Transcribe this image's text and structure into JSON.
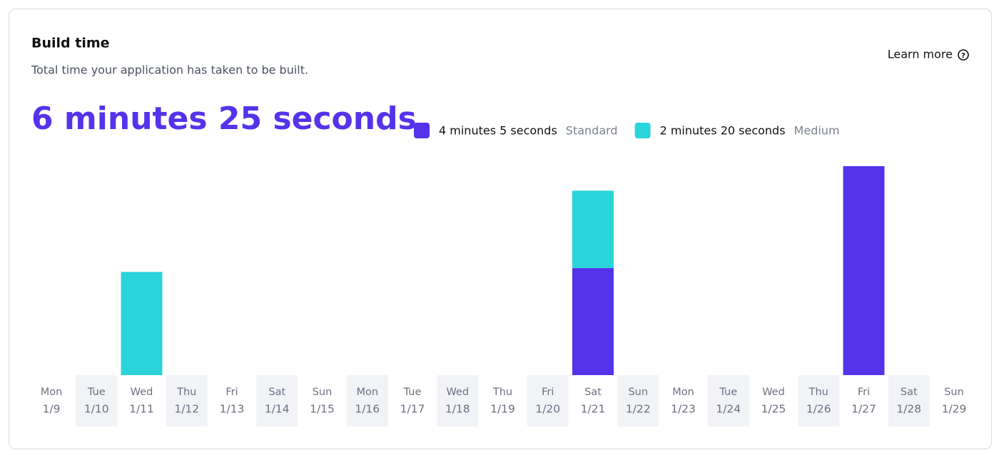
{
  "chart_data": {
    "type": "stacked_bar",
    "title": "Build time",
    "subtitle": "Total time your application has taken to be built.",
    "link": "Learn more",
    "total_label": "6 minutes 25 seconds",
    "weekdays": [
      "Mon",
      "Tue",
      "Wed",
      "Thu",
      "Fri",
      "Sat",
      "Sun",
      "Mon",
      "Tue",
      "Wed",
      "Thu",
      "Fri",
      "Sat",
      "Sun",
      "Mon",
      "Tue",
      "Wed",
      "Thu",
      "Fri",
      "Sat",
      "Sun"
    ],
    "categories": [
      "1/9",
      "1/10",
      "1/11",
      "1/12",
      "1/13",
      "1/14",
      "1/15",
      "1/16",
      "1/17",
      "1/18",
      "1/19",
      "1/20",
      "1/21",
      "1/22",
      "1/23",
      "1/24",
      "1/25",
      "1/26",
      "1/27",
      "1/28",
      "1/29"
    ],
    "series": [
      {
        "name": "Standard",
        "label": "4 minutes 5 seconds",
        "color": "#5433eb",
        "values": [
          0,
          0,
          0,
          0,
          0,
          0,
          0,
          0,
          0,
          0,
          0,
          0,
          83,
          0,
          0,
          0,
          0,
          0,
          162,
          0,
          0
        ]
      },
      {
        "name": "Medium",
        "label": "2 minutes 20 seconds",
        "color": "#2ad4d9",
        "values": [
          0,
          0,
          80,
          0,
          0,
          0,
          0,
          0,
          0,
          0,
          0,
          0,
          60,
          0,
          0,
          0,
          0,
          0,
          0,
          0,
          0
        ]
      }
    ]
  }
}
